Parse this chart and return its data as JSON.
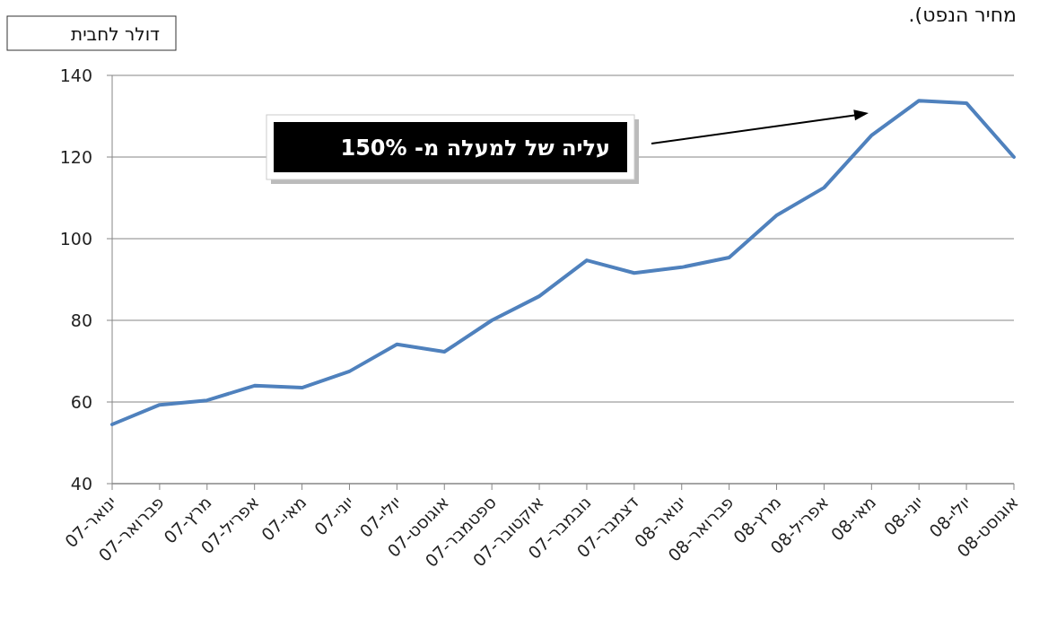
{
  "chart_data": {
    "type": "line",
    "ylabel": "דולר לחבית",
    "categories": [
      "ינואר-07",
      "פברואר-07",
      "מרץ-07",
      "אפריל-07",
      "מאי-07",
      "יוני-07",
      "יולי-07",
      "אוגוסט-07",
      "ספטמבר-07",
      "אוקטובר-07",
      "נובמבר-07",
      "דצמבר-07",
      "ינואר-08",
      "פברואר-08",
      "מרץ-08",
      "אפריל-08",
      "מאי-08",
      "יוני-08",
      "יולי-08",
      "אוגוסט-08"
    ],
    "series": [
      {
        "color": "#4f81bd",
        "values": [
          54.5,
          59.3,
          60.4,
          64.0,
          63.5,
          67.5,
          74.1,
          72.3,
          80.0,
          85.9,
          94.7,
          91.6,
          93.0,
          95.4,
          105.7,
          112.5,
          125.3,
          133.8,
          133.2,
          120.0
        ]
      }
    ],
    "ylim": [
      40,
      140
    ],
    "yticks": [
      40,
      60,
      80,
      100,
      120,
      140
    ],
    "grid": "y",
    "marker": "none",
    "line_style": "solid",
    "annotations": [
      "מחיר הנפט).",
      "עליה של למעלה מ- 150%"
    ]
  }
}
